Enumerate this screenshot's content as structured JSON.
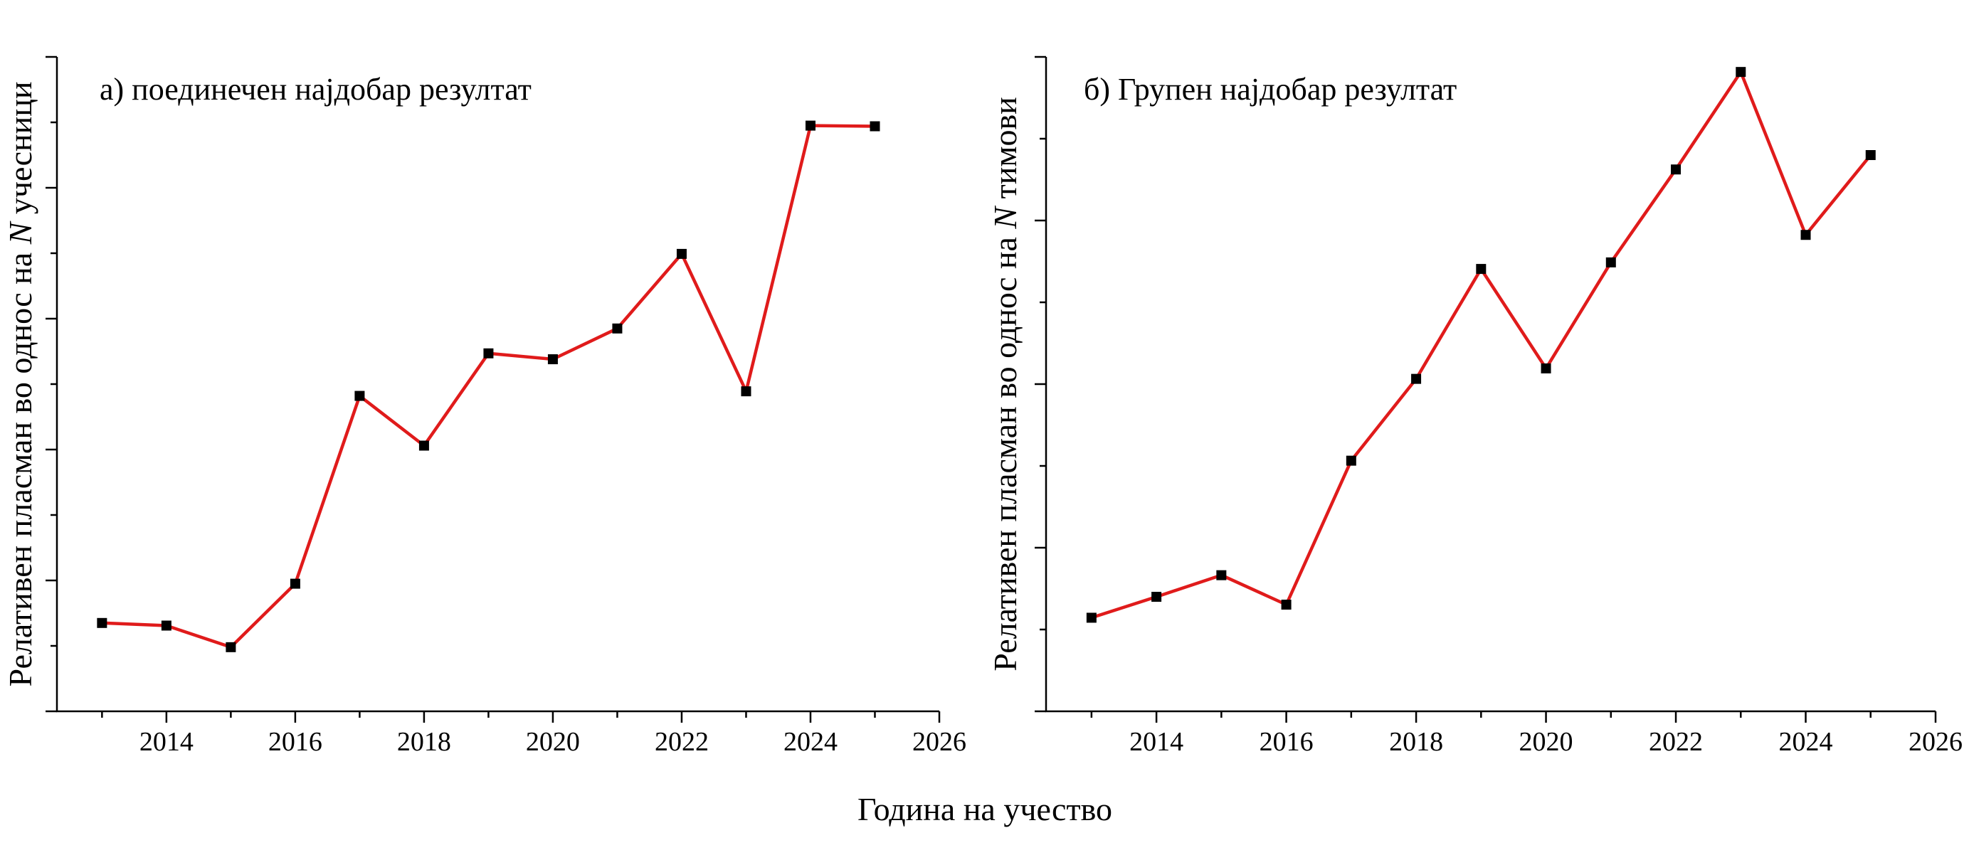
{
  "figure": {
    "xlabel": "Година на учество"
  },
  "chart_data": [
    {
      "type": "line",
      "title": "а) поединечен најдобар резултат",
      "ylabel_prefix": "Релативен пласман во однос на ",
      "ylabel_var": "N",
      "ylabel_suffix": " учесници",
      "xlim": [
        2012.3,
        2026
      ],
      "ylim": [
        0,
        1
      ],
      "xticks": [
        2014,
        2016,
        2018,
        2020,
        2022,
        2024,
        2026
      ],
      "ytick_count": 5,
      "ytick_labels_shown": false,
      "color": "#e01b1b",
      "marker_color": "#000000",
      "x": [
        2013,
        2014,
        2015,
        2016,
        2017,
        2018,
        2019,
        2020,
        2021,
        2022,
        2023,
        2024,
        2025
      ],
      "values": [
        0.135,
        0.131,
        0.098,
        0.195,
        0.482,
        0.406,
        0.547,
        0.538,
        0.585,
        0.699,
        0.489,
        0.895,
        0.894
      ]
    },
    {
      "type": "line",
      "title": "б) Групен најдобар резултат",
      "ylabel_prefix": "Релативен пласман во однос на ",
      "ylabel_var": "N",
      "ylabel_suffix": " тимови",
      "xlim": [
        2012.3,
        2026
      ],
      "ylim": [
        0,
        1
      ],
      "xticks": [
        2014,
        2016,
        2018,
        2020,
        2022,
        2024,
        2026
      ],
      "ytick_count": 4,
      "ytick_labels_shown": false,
      "color": "#e01b1b",
      "marker_color": "#000000",
      "x": [
        2013,
        2014,
        2015,
        2016,
        2017,
        2018,
        2019,
        2020,
        2021,
        2022,
        2023,
        2024,
        2025
      ],
      "values": [
        0.143,
        0.175,
        0.208,
        0.163,
        0.383,
        0.508,
        0.676,
        0.524,
        0.686,
        0.828,
        0.977,
        0.728,
        0.85
      ]
    }
  ]
}
